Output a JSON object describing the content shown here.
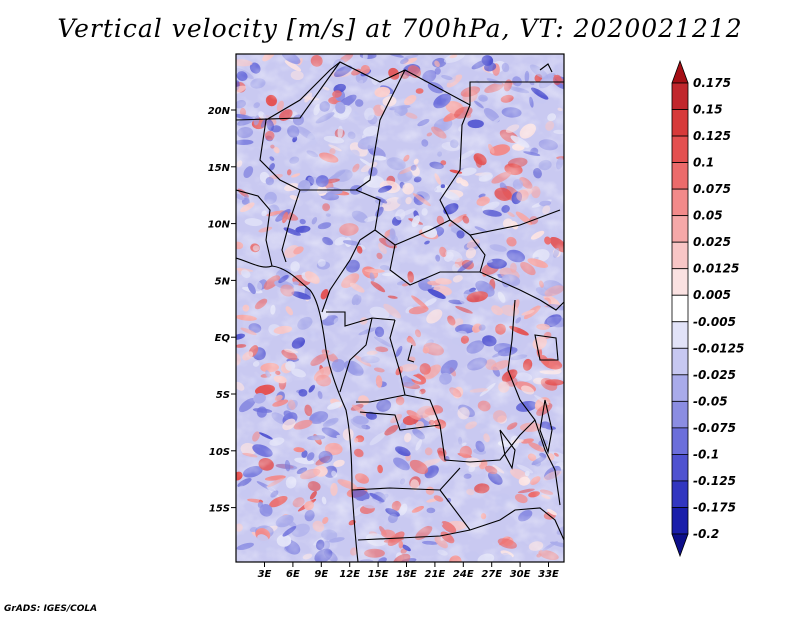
{
  "title": "Vertical velocity [m/s] at 700hPa, VT: 2020021212",
  "credit": "GrADS: IGES/COLA",
  "map": {
    "lon_labels": [
      "3E",
      "6E",
      "9E",
      "12E",
      "15E",
      "18E",
      "21E",
      "24E",
      "27E",
      "30E",
      "33E"
    ],
    "lat_labels": [
      "20N",
      "15N",
      "10N",
      "5N",
      "EQ",
      "5S",
      "10S",
      "15S"
    ]
  },
  "colorbar": {
    "levels": [
      "0.175",
      "0.15",
      "0.125",
      "0.1",
      "0.075",
      "0.05",
      "0.025",
      "0.0125",
      "0.005",
      "-0.005",
      "-0.0125",
      "-0.025",
      "-0.05",
      "-0.075",
      "-0.1",
      "-0.125",
      "-0.175",
      "-0.2"
    ],
    "colors": [
      "#a50f15",
      "#c1272d",
      "#d73a3a",
      "#e45050",
      "#ec6b6b",
      "#f28a8a",
      "#f5a8a8",
      "#f8c6c6",
      "#fbe2e2",
      "#ffffff",
      "#e2e3f8",
      "#c7c8f1",
      "#a9abea",
      "#8b8de2",
      "#6c6fdb",
      "#4f52d0",
      "#3236c0",
      "#1a1eaa",
      "#0d0f8a"
    ]
  }
}
